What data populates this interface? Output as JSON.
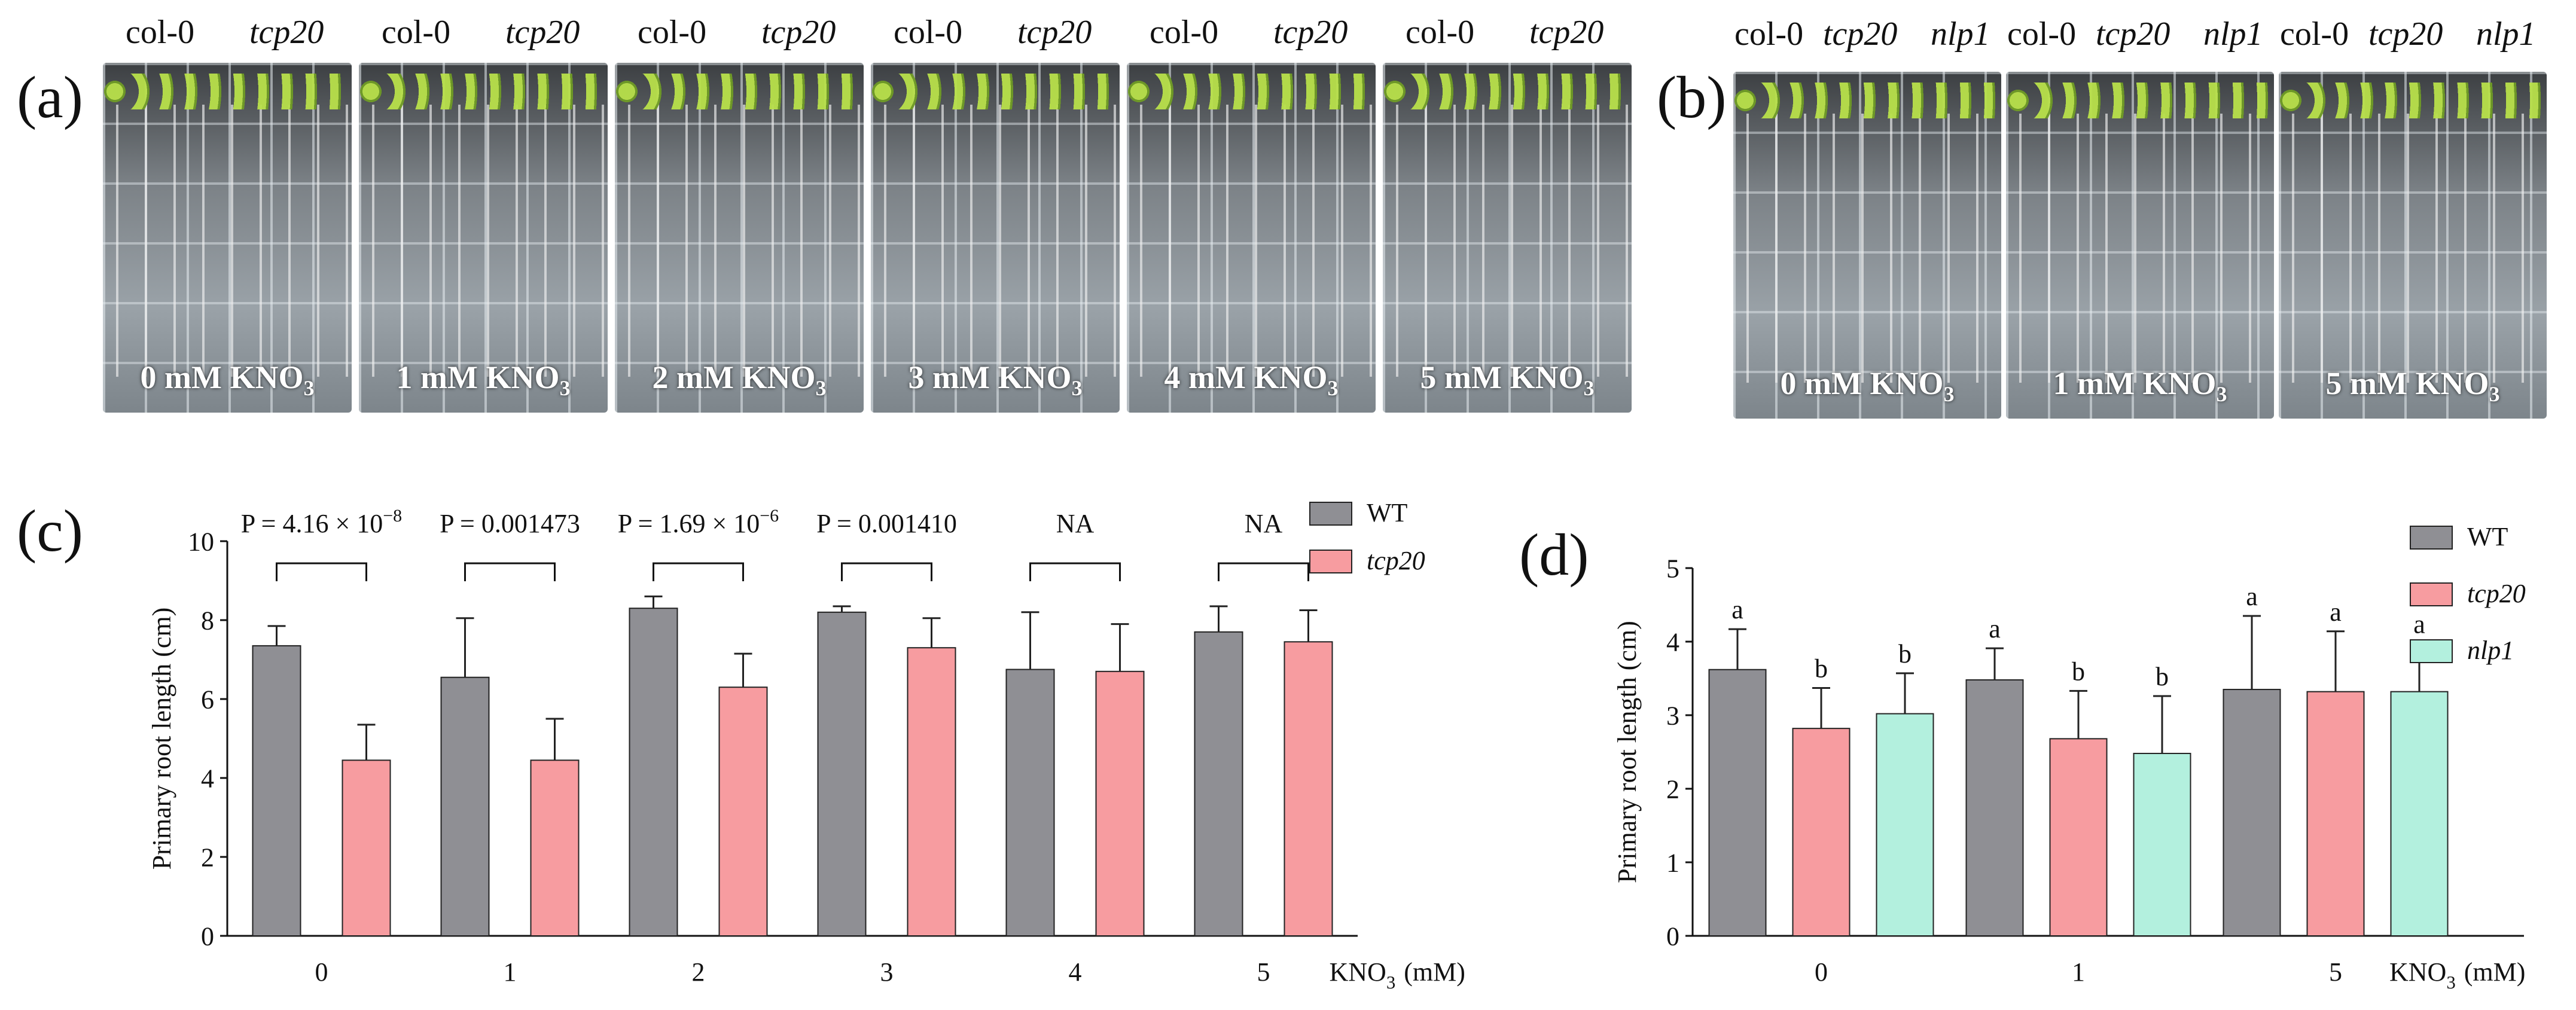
{
  "panels": {
    "a": {
      "label": "(a)",
      "plates": [
        {
          "col0": "col-0",
          "mutant": "tcp20",
          "caption": "0 mM KNO",
          "sub": "3"
        },
        {
          "col0": "col-0",
          "mutant": "tcp20",
          "caption": "1 mM KNO",
          "sub": "3"
        },
        {
          "col0": "col-0",
          "mutant": "tcp20",
          "caption": "2 mM KNO",
          "sub": "3"
        },
        {
          "col0": "col-0",
          "mutant": "tcp20",
          "caption": "3 mM KNO",
          "sub": "3"
        },
        {
          "col0": "col-0",
          "mutant": "tcp20",
          "caption": "4 mM KNO",
          "sub": "3"
        },
        {
          "col0": "col-0",
          "mutant": "tcp20",
          "caption": "5 mM KNO",
          "sub": "3"
        }
      ]
    },
    "b": {
      "label": "(b)",
      "plates": [
        {
          "col0": "col-0",
          "tcp20": "tcp20",
          "nlp1": "nlp1",
          "caption": "0 mM KNO",
          "sub": "3"
        },
        {
          "col0": "col-0",
          "tcp20": "tcp20",
          "nlp1": "nlp1",
          "caption": "1 mM KNO",
          "sub": "3"
        },
        {
          "col0": "col-0",
          "tcp20": "tcp20",
          "nlp1": "nlp1",
          "caption": "5 mM KNO",
          "sub": "3"
        }
      ]
    },
    "c": {
      "label": "(c)"
    },
    "d": {
      "label": "(d)"
    }
  },
  "colors": {
    "wt": "#8f8f94",
    "tcp20": "#f79ca0",
    "nlp1": "#b3f0de",
    "axis": "#111111"
  },
  "chart_data": [
    {
      "type": "bar",
      "panel": "c",
      "categories": [
        "0",
        "1",
        "2",
        "3",
        "4",
        "5"
      ],
      "series": [
        {
          "name": "WT",
          "values": [
            7.35,
            6.55,
            8.3,
            8.2,
            6.75,
            7.7
          ],
          "errors": [
            0.5,
            1.5,
            0.3,
            0.15,
            1.45,
            0.65
          ],
          "color": "#8f8f94"
        },
        {
          "name": "tcp20",
          "values": [
            4.45,
            4.45,
            6.3,
            7.3,
            6.7,
            7.45
          ],
          "errors": [
            0.9,
            1.05,
            0.85,
            0.75,
            1.2,
            0.8
          ],
          "color": "#f79ca0"
        }
      ],
      "ylabel": "Primary root length  (cm)",
      "xlabel": "KNO",
      "xlabel_sub": "3",
      "xlabel_unit": "(mM)",
      "ylim": [
        0,
        10
      ],
      "yticks": [
        "0",
        "2",
        "4",
        "6",
        "8",
        "10"
      ],
      "annotations": [
        {
          "text": "P = 4.16 × 10",
          "sup": "−8"
        },
        {
          "text": "P = 0.001473",
          "sup": ""
        },
        {
          "text": "P = 1.69 × 10",
          "sup": "−6"
        },
        {
          "text": "P = 0.001410",
          "sup": ""
        },
        {
          "text": "NA",
          "sup": ""
        },
        {
          "text": "NA",
          "sup": ""
        }
      ],
      "legend_position": "top-right"
    },
    {
      "type": "bar",
      "panel": "d",
      "categories": [
        "0",
        "1",
        "5"
      ],
      "series": [
        {
          "name": "WT",
          "values": [
            3.62,
            3.48,
            3.35
          ],
          "errors": [
            0.55,
            0.43,
            1.0
          ],
          "color": "#8f8f94"
        },
        {
          "name": "tcp20",
          "values": [
            2.82,
            2.68,
            3.32
          ],
          "errors": [
            0.55,
            0.65,
            0.82
          ],
          "color": "#f79ca0"
        },
        {
          "name": "nlp1",
          "values": [
            3.02,
            2.48,
            3.32
          ],
          "errors": [
            0.55,
            0.78,
            0.65
          ],
          "color": "#b3f0de"
        }
      ],
      "letters": [
        [
          "a",
          "b",
          "b"
        ],
        [
          "a",
          "b",
          "b"
        ],
        [
          "a",
          "a",
          "a"
        ]
      ],
      "ylabel": "Primary root length (cm)",
      "xlabel": "KNO",
      "xlabel_sub": "3",
      "xlabel_unit": "(mM)",
      "ylim": [
        0,
        5
      ],
      "yticks": [
        "0",
        "1",
        "2",
        "3",
        "4",
        "5"
      ],
      "legend_position": "top-right"
    }
  ]
}
